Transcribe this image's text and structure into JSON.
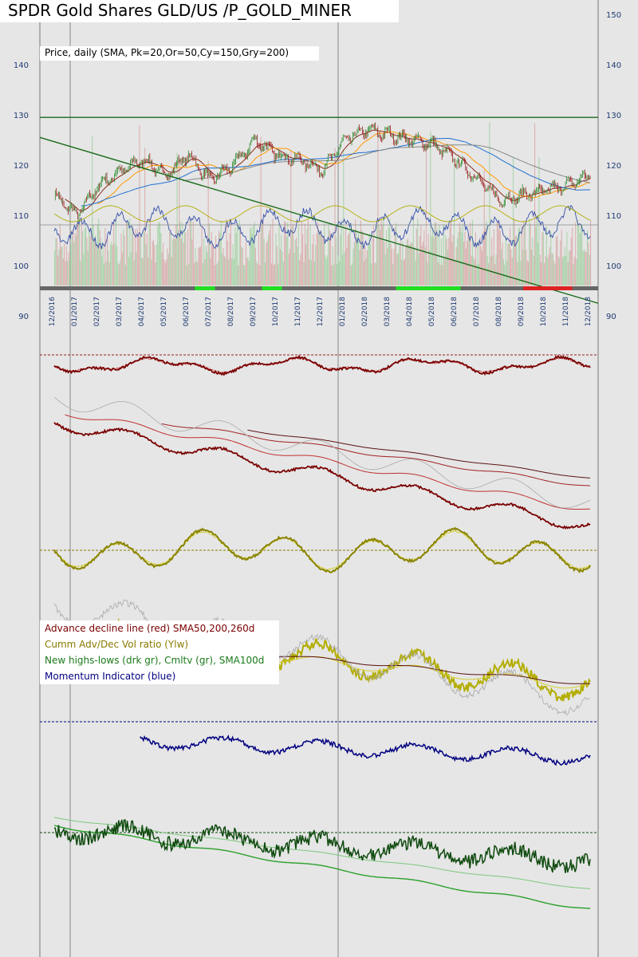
{
  "header": {
    "title": "SPDR Gold Shares GLD/US /P_GOLD_MINER",
    "price_legend": "Price, daily (SMA, Pk=20,Or=50,Cy=150,Gry=200)"
  },
  "indicator_legend": [
    {
      "label": "Advance decline line (red) SMA50,200,260d",
      "color": "#7a0000"
    },
    {
      "label": "Cumm Adv/Dec Vol ratio (Ylw)",
      "color": "#8a7a00"
    },
    {
      "label": "New highs-lows (drk gr), Cmltv (gr), SMA100d",
      "color": "#1a7a1a"
    },
    {
      "label": "Momentum Indicator (blue)",
      "color": "#000080"
    }
  ],
  "colors": {
    "background": "#e6e6e6",
    "up_candle": "#2e8b2e",
    "down_candle": "#9b1c1c",
    "resistance": "#1a6b1a",
    "sma20": "#ff69b4",
    "sma50": "#ff9900",
    "sma150": "#1e6fd0",
    "sma200": "#888888",
    "ad_line": "#7a0000",
    "adv_dec_ratio": "#b3ad00",
    "new_highs_lows": "#0f4a0f",
    "momentum": "#000080"
  },
  "chart_data": {
    "type": "line",
    "title": "SPDR Gold Shares GLD/US /P_GOLD_MINER",
    "ylabel": "",
    "ylim": [
      90,
      150
    ],
    "yticks": [
      90,
      100,
      110,
      120,
      130,
      140,
      150
    ],
    "x_tick_labels": [
      "12/2016",
      "01/2017",
      "02/2017",
      "03/2017",
      "04/2017",
      "05/2017",
      "06/2017",
      "07/2017",
      "08/2017",
      "09/2017",
      "10/2017",
      "11/2017",
      "12/2017",
      "01/2018",
      "02/2018",
      "03/2018",
      "04/2018",
      "05/2018",
      "06/2018",
      "07/2018",
      "08/2018",
      "09/2018",
      "10/2018",
      "11/2018",
      "12/2018"
    ],
    "price_series": {
      "name": "Price, daily",
      "x": [
        "12/2016",
        "01/2017",
        "02/2017",
        "03/2017",
        "04/2017",
        "05/2017",
        "06/2017",
        "07/2017",
        "08/2017",
        "09/2017",
        "10/2017",
        "11/2017",
        "12/2017",
        "01/2018",
        "02/2018",
        "03/2018",
        "04/2018",
        "05/2018",
        "06/2018",
        "07/2018",
        "08/2018",
        "09/2018",
        "10/2018",
        "11/2018",
        "12/2018"
      ],
      "values": [
        114,
        110,
        116,
        119,
        121,
        118,
        122,
        117,
        120,
        125,
        122,
        121,
        119,
        125,
        127,
        126,
        125,
        124,
        121,
        117,
        113,
        114,
        115,
        116,
        118
      ]
    },
    "horizontal_line": 129.5,
    "trend_line": {
      "start": 125.5,
      "end": 92.5
    },
    "signal_bar": {
      "green_segments": [
        [
          6.3,
          7.2
        ],
        [
          9.3,
          10.2
        ],
        [
          15.3,
          18.2
        ]
      ],
      "red_segments": [
        [
          21.0,
          23.2
        ]
      ]
    }
  }
}
